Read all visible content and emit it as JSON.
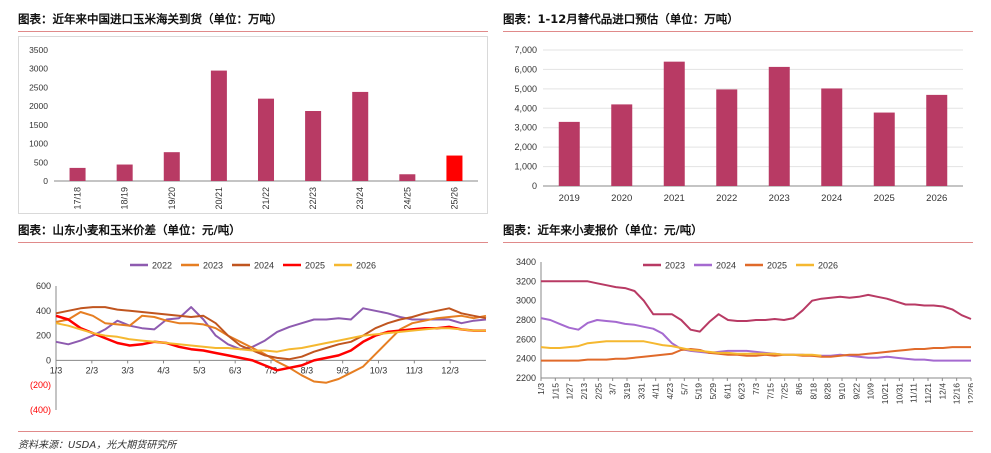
{
  "source": "资料来源：USDA，光大期货研究所",
  "chart_data": [
    {
      "title": "图表：近年来中国进口玉米海关到货（单位：万吨）",
      "type": "bar",
      "categories": [
        "17/18",
        "18/19",
        "19/20",
        "20/21",
        "21/22",
        "22/23",
        "23/24",
        "24/25",
        "25/26"
      ],
      "values": [
        350,
        440,
        770,
        2950,
        2200,
        1870,
        2380,
        180,
        680
      ],
      "colors": [
        "#b83a64",
        "#b83a64",
        "#b83a64",
        "#b83a64",
        "#b83a64",
        "#b83a64",
        "#b83a64",
        "#b83a64",
        "#ff0000"
      ],
      "yticks": [
        "0",
        "500",
        "1000",
        "1500",
        "2000",
        "2500",
        "3000",
        "3500"
      ],
      "ylim": [
        0,
        3500
      ]
    },
    {
      "title": "图表：1-12月替代品进口预估（单位：万吨）",
      "type": "bar",
      "categories": [
        "2019",
        "2020",
        "2021",
        "2022",
        "2023",
        "2024",
        "2025",
        "2026"
      ],
      "values": [
        3300,
        4200,
        6400,
        4970,
        6130,
        5020,
        3780,
        4690
      ],
      "color": "#b83a64",
      "yticks": [
        "0",
        "1,000",
        "2,000",
        "3,000",
        "4,000",
        "5,000",
        "6,000",
        "7,000"
      ],
      "ylim": [
        0,
        7000
      ]
    },
    {
      "title": "图表：山东小麦和玉米价差（单位：元/吨）",
      "type": "line",
      "xticks": [
        "1/3",
        "2/3",
        "3/3",
        "4/3",
        "5/3",
        "6/3",
        "7/3",
        "8/3",
        "9/3",
        "10/3",
        "11/3",
        "12/3"
      ],
      "yticks": [
        "600",
        "400",
        "200",
        "0",
        "(200)",
        "(400)"
      ],
      "ylim": [
        -400,
        600
      ],
      "series": [
        {
          "name": "2022",
          "color": "#8e5bb0",
          "width": 2,
          "values": [
            150,
            130,
            160,
            200,
            250,
            320,
            280,
            260,
            250,
            330,
            340,
            430,
            330,
            200,
            130,
            90,
            110,
            160,
            230,
            270,
            300,
            330,
            330,
            340,
            330,
            420,
            400,
            380,
            350,
            330,
            330,
            330,
            330,
            300,
            320,
            330
          ]
        },
        {
          "name": "2023",
          "color": "#e67e22",
          "width": 2,
          "values": [
            310,
            330,
            390,
            360,
            300,
            290,
            280,
            360,
            350,
            320,
            300,
            300,
            290,
            260,
            200,
            150,
            100,
            50,
            -10,
            -60,
            -120,
            -170,
            -180,
            -150,
            -100,
            -50,
            50,
            150,
            250,
            300,
            320,
            340,
            350,
            360,
            340,
            360
          ]
        },
        {
          "name": "2024",
          "color": "#c0551f",
          "width": 2,
          "values": [
            380,
            400,
            420,
            430,
            430,
            410,
            400,
            390,
            380,
            370,
            360,
            350,
            360,
            300,
            200,
            120,
            80,
            40,
            20,
            10,
            30,
            70,
            100,
            130,
            150,
            200,
            260,
            300,
            330,
            350,
            380,
            400,
            420,
            380,
            360,
            340
          ]
        },
        {
          "name": "2025",
          "color": "#ff0000",
          "width": 2.5,
          "values": [
            360,
            330,
            260,
            220,
            180,
            140,
            120,
            130,
            150,
            140,
            110,
            90,
            80,
            60,
            40,
            20,
            0,
            -40,
            -80,
            -60,
            -40,
            0,
            20,
            40,
            80,
            150,
            200,
            230,
            240,
            250,
            260,
            260,
            270,
            250,
            240,
            240
          ]
        },
        {
          "name": "2026",
          "color": "#f5b830",
          "width": 2,
          "values": [
            300,
            280,
            250,
            220,
            200,
            190,
            170,
            160,
            150,
            140,
            130,
            120,
            110,
            100,
            100,
            90,
            80,
            80,
            70,
            90,
            100,
            120,
            140,
            160,
            180,
            200,
            210,
            220,
            230,
            240,
            250,
            260,
            260,
            250,
            240,
            240
          ]
        }
      ]
    },
    {
      "title": "图表：近年来小麦报价（单位：元/吨）",
      "type": "line",
      "xticks": [
        "1/3",
        "1/15",
        "1/27",
        "2/13",
        "2/25",
        "3/7",
        "3/19",
        "3/31",
        "4/11",
        "4/23",
        "5/7",
        "5/19",
        "5/29",
        "6/11",
        "6/23",
        "7/3",
        "7/15",
        "7/25",
        "8/6",
        "8/18",
        "8/28",
        "9/10",
        "9/22",
        "10/9",
        "10/21",
        "10/31",
        "11/11",
        "11/21",
        "12/4",
        "12/16",
        "12/26"
      ],
      "yticks": [
        "3400",
        "3200",
        "3000",
        "2800",
        "2600",
        "2400",
        "2200"
      ],
      "ylim": [
        2200,
        3400
      ],
      "series": [
        {
          "name": "2023",
          "color": "#b83a64",
          "width": 2,
          "values": [
            3200,
            3200,
            3200,
            3200,
            3200,
            3200,
            3180,
            3160,
            3140,
            3130,
            3100,
            3000,
            2860,
            2860,
            2860,
            2800,
            2700,
            2680,
            2780,
            2860,
            2800,
            2790,
            2790,
            2800,
            2800,
            2810,
            2800,
            2820,
            2900,
            3000,
            3020,
            3030,
            3040,
            3030,
            3040,
            3060,
            3040,
            3020,
            2990,
            2960,
            2960,
            2950,
            2950,
            2940,
            2910,
            2850,
            2810
          ]
        },
        {
          "name": "2024",
          "color": "#a56ad0",
          "width": 2,
          "values": [
            2820,
            2800,
            2760,
            2720,
            2700,
            2770,
            2800,
            2790,
            2780,
            2760,
            2750,
            2730,
            2710,
            2660,
            2560,
            2500,
            2480,
            2470,
            2460,
            2470,
            2480,
            2480,
            2480,
            2470,
            2460,
            2450,
            2440,
            2440,
            2440,
            2430,
            2430,
            2430,
            2440,
            2430,
            2420,
            2410,
            2410,
            2420,
            2410,
            2400,
            2390,
            2390,
            2380,
            2380,
            2380,
            2380,
            2380
          ]
        },
        {
          "name": "2025",
          "color": "#e06a2a",
          "width": 2,
          "values": [
            2380,
            2380,
            2380,
            2380,
            2380,
            2390,
            2390,
            2390,
            2400,
            2400,
            2410,
            2420,
            2430,
            2440,
            2450,
            2490,
            2500,
            2490,
            2460,
            2450,
            2440,
            2440,
            2430,
            2430,
            2440,
            2430,
            2440,
            2440,
            2430,
            2430,
            2420,
            2420,
            2430,
            2440,
            2440,
            2450,
            2460,
            2470,
            2480,
            2490,
            2500,
            2500,
            2510,
            2510,
            2520,
            2520,
            2520
          ]
        },
        {
          "name": "2026",
          "color": "#f5b830",
          "width": 2,
          "values": [
            2520,
            2510,
            2510,
            2520,
            2530,
            2560,
            2570,
            2580,
            2580,
            2580,
            2580,
            2580,
            2560,
            2540,
            2530,
            2510,
            2490,
            2480,
            2470,
            2460,
            2460,
            2450,
            2450,
            2450,
            2450,
            2450,
            2440,
            2440,
            2440,
            2440,
            2430
          ]
        }
      ]
    }
  ]
}
